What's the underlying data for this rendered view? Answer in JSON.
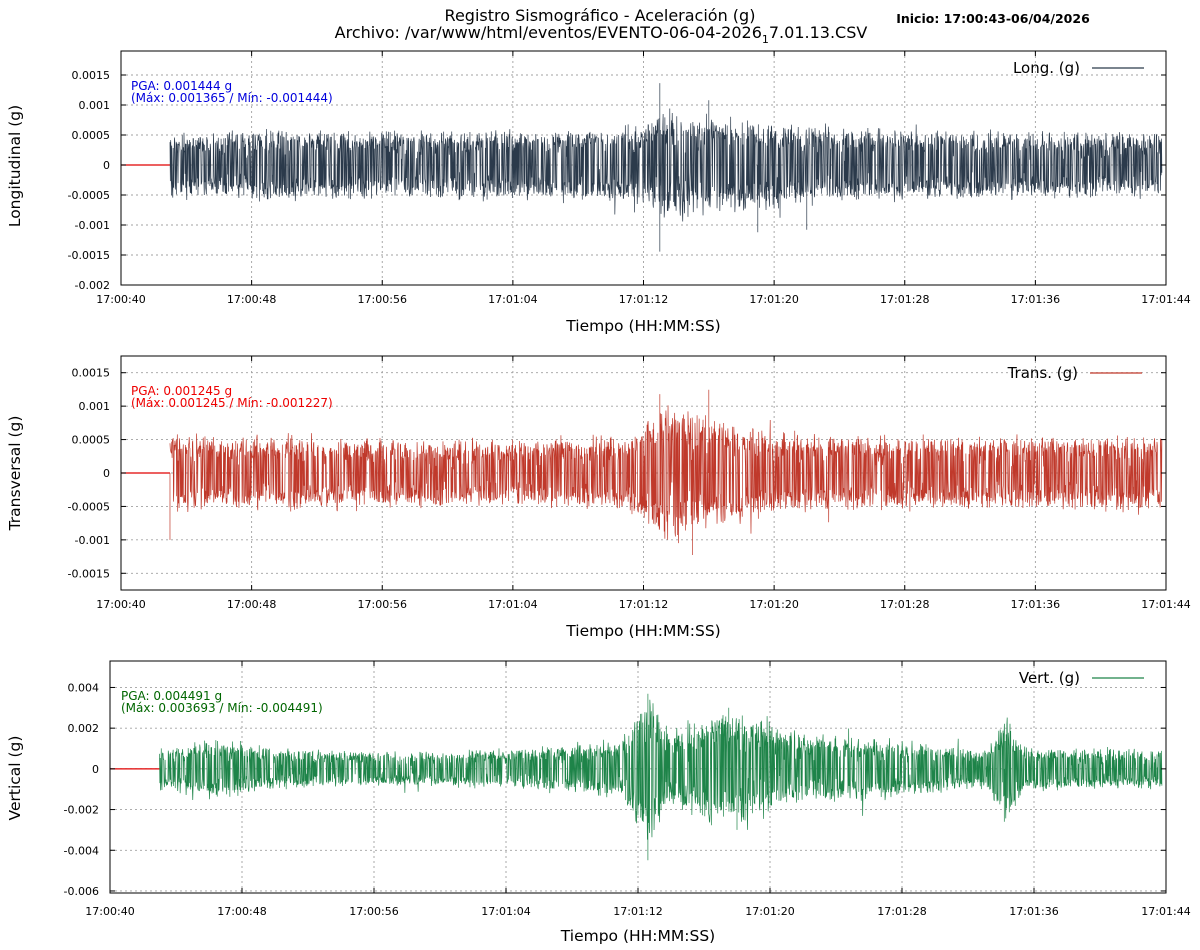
{
  "header": {
    "title_line1": "Registro Sismográfico - Aceleración (g)",
    "title_line2_prefix": "Archivo: /var/www/html/eventos/EVENTO-06-04-2026",
    "title_line2_sub": "1",
    "title_line2_suffix": "7.01.13.CSV",
    "inicio": "Inicio: 17:00:43-06/04/2026"
  },
  "colors": {
    "long": "#2b3a4b",
    "trans": "#c0392b",
    "vert": "#1e8449",
    "pre_event": "#e00000",
    "pga_long": "#0000dd",
    "pga_trans": "#ee0000",
    "pga_vert": "#006600"
  },
  "chart_data": [
    {
      "type": "line",
      "key": "long",
      "legend": "Long. (g)",
      "legend_position": "top-right",
      "ylabel": "Longitudinal (g)",
      "xlabel": "Tiempo (HH:MM:SS)",
      "grid": true,
      "xlim": [
        "17:00:40",
        "17:01:44"
      ],
      "ylim": [
        -0.002,
        0.0019
      ],
      "xticks": [
        "17:00:40",
        "17:00:48",
        "17:00:56",
        "17:01:04",
        "17:01:12",
        "17:01:20",
        "17:01:28",
        "17:01:36",
        "17:01:44"
      ],
      "yticks": [
        0.0015,
        0.001,
        0.0005,
        0,
        -0.0005,
        -0.001,
        -0.0015,
        -0.002
      ],
      "ytick_labels": [
        "0.0015",
        "0.001",
        "0.0005",
        "0",
        "-0.0005",
        "-0.001",
        "-0.0015",
        "-0.002"
      ],
      "series_start": "17:00:43",
      "pga": "PGA: 0.001444 g",
      "pga_range": "(Máx: 0.001365 / Mín: -0.001444)",
      "max": 0.001365,
      "min": -0.001444,
      "envelope": [
        [
          "17:00:43",
          0.00045
        ],
        [
          "17:00:50",
          0.0005
        ],
        [
          "17:01:00",
          0.00048
        ],
        [
          "17:01:08",
          0.0005
        ],
        [
          "17:01:12",
          0.00055
        ],
        [
          "17:01:13",
          0.0008
        ],
        [
          "17:01:16",
          0.0007
        ],
        [
          "17:01:20",
          0.0006
        ],
        [
          "17:01:26",
          0.0005
        ],
        [
          "17:01:44",
          0.00045
        ]
      ],
      "spikes": [
        [
          "17:01:13",
          0.001365
        ],
        [
          "17:01:13",
          -0.001444
        ],
        [
          "17:01:16",
          0.00108
        ],
        [
          "17:01:19",
          -0.00112
        ],
        [
          "17:01:22",
          -0.00108
        ]
      ]
    },
    {
      "type": "line",
      "key": "trans",
      "legend": "Trans. (g)",
      "legend_position": "top-right",
      "ylabel": "Transversal (g)",
      "xlabel": "Tiempo (HH:MM:SS)",
      "grid": true,
      "xlim": [
        "17:00:40",
        "17:01:44"
      ],
      "ylim": [
        -0.00175,
        0.00175
      ],
      "xticks": [
        "17:00:40",
        "17:00:48",
        "17:00:56",
        "17:01:04",
        "17:01:12",
        "17:01:20",
        "17:01:28",
        "17:01:36",
        "17:01:44"
      ],
      "yticks": [
        0.0015,
        0.001,
        0.0005,
        0,
        -0.0005,
        -0.001,
        -0.0015
      ],
      "ytick_labels": [
        "0.0015",
        "0.001",
        "0.0005",
        "0",
        "-0.0005",
        "-0.001",
        "-0.0015"
      ],
      "series_start": "17:00:43",
      "pga": "PGA: 0.001245 g",
      "pga_range": "(Máx: 0.001245 / Mín: -0.001227)",
      "max": 0.001245,
      "min": -0.001227,
      "envelope": [
        [
          "17:00:43",
          0.00048
        ],
        [
          "17:00:55",
          0.00045
        ],
        [
          "17:01:05",
          0.0004
        ],
        [
          "17:01:11",
          0.00048
        ],
        [
          "17:01:12",
          0.0006
        ],
        [
          "17:01:13",
          0.0009
        ],
        [
          "17:01:16",
          0.0007
        ],
        [
          "17:01:20",
          0.0005
        ],
        [
          "17:01:30",
          0.00045
        ],
        [
          "17:01:44",
          0.00048
        ]
      ],
      "spikes": [
        [
          "17:01:13",
          0.00118
        ],
        [
          "17:01:16",
          0.001245
        ],
        [
          "17:01:15",
          -0.001227
        ],
        [
          "17:00:43",
          -0.001
        ]
      ]
    },
    {
      "type": "line",
      "key": "vert",
      "legend": "Vert. (g)",
      "legend_position": "top-right",
      "ylabel": "Vertical (g)",
      "xlabel": "Tiempo (HH:MM:SS)",
      "grid": true,
      "xlim": [
        "17:00:40",
        "17:01:44"
      ],
      "ylim": [
        -0.0061,
        0.0053
      ],
      "xticks": [
        "17:00:40",
        "17:00:48",
        "17:00:56",
        "17:01:04",
        "17:01:12",
        "17:01:20",
        "17:01:28",
        "17:01:36",
        "17:01:44"
      ],
      "yticks": [
        0.004,
        0.002,
        0,
        -0.002,
        -0.004,
        -0.006
      ],
      "ytick_labels": [
        "0.004",
        "0.002",
        "0",
        "-0.002",
        "-0.004",
        "-0.006"
      ],
      "series_start": "17:00:43",
      "pga": "PGA: 0.004491 g",
      "pga_range": "(Máx: 0.003693 / Mín: -0.004491)",
      "max": 0.003693,
      "min": -0.004491,
      "envelope": [
        [
          "17:00:43",
          0.0009
        ],
        [
          "17:00:47",
          0.0012
        ],
        [
          "17:00:50",
          0.0008
        ],
        [
          "17:01:00",
          0.0007
        ],
        [
          "17:01:06",
          0.0009
        ],
        [
          "17:01:11",
          0.0012
        ],
        [
          "17:01:12.6",
          0.0032
        ],
        [
          "17:01:14",
          0.0015
        ],
        [
          "17:01:17",
          0.0025
        ],
        [
          "17:01:19",
          0.0022
        ],
        [
          "17:01:22",
          0.0014
        ],
        [
          "17:01:27",
          0.0012
        ],
        [
          "17:01:33",
          0.0008
        ],
        [
          "17:01:34.2",
          0.0022
        ],
        [
          "17:01:35.5",
          0.0009
        ],
        [
          "17:01:44",
          0.0008
        ]
      ],
      "spikes": [
        [
          "17:01:12.6",
          0.003693
        ],
        [
          "17:01:12.6",
          -0.004491
        ],
        [
          "17:01:17.5",
          0.003
        ],
        [
          "17:01:18",
          -0.003
        ],
        [
          "17:01:34.2",
          -0.0026
        ]
      ]
    }
  ]
}
